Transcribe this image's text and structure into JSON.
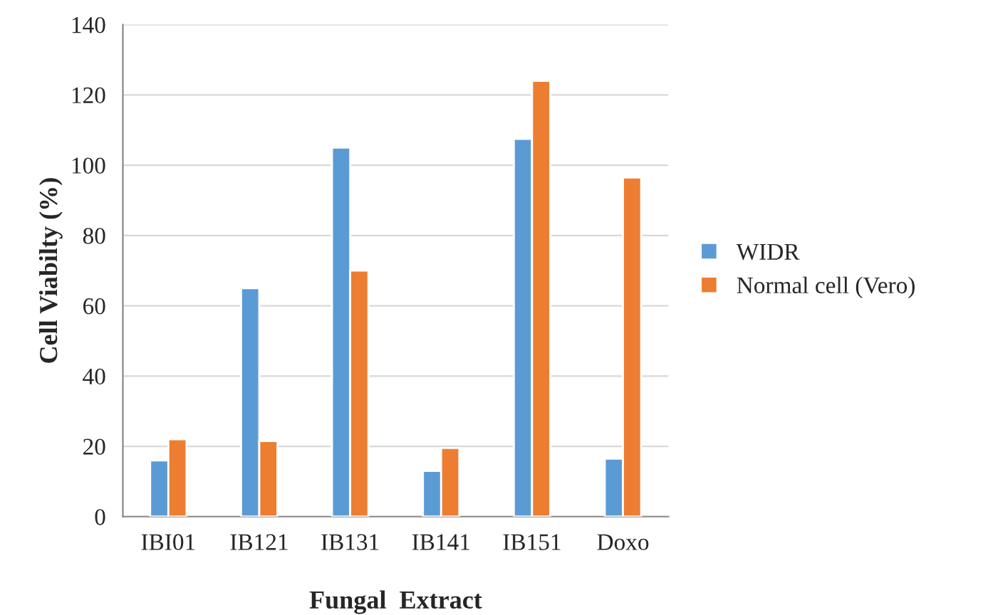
{
  "chart_data": {
    "type": "bar",
    "xlabel": "Fungal  Extract",
    "ylabel": "Cell Viabilty (%)",
    "categories": [
      "IBI01",
      "IB121",
      "IB131",
      "IB141",
      "IB151",
      "Doxo"
    ],
    "series": [
      {
        "name": "WIDR",
        "color": "#5b9bd5",
        "values": [
          16,
          65,
          105,
          13,
          107.5,
          16.5
        ]
      },
      {
        "name": "Normal cell (Vero)",
        "color": "#ed7d31",
        "values": [
          22,
          21.5,
          70,
          19.5,
          124,
          96.5
        ]
      }
    ],
    "ylim": [
      0,
      140
    ],
    "yticks": [
      0,
      20,
      40,
      60,
      80,
      100,
      120,
      140
    ],
    "grid": "y",
    "legend": "right"
  }
}
